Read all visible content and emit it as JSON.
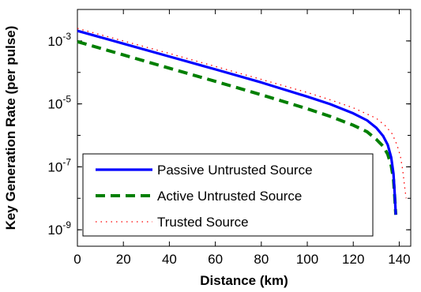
{
  "chart_data": {
    "type": "line",
    "title": "",
    "xlabel": "Distance (km)",
    "ylabel": "Key Generation Rate (per pulse)",
    "xlim": [
      0,
      145
    ],
    "ylim": [
      3e-10,
      0.01
    ],
    "yscale": "log",
    "grid": false,
    "legend_position": "bottom-left",
    "x_ticks": [
      0,
      20,
      40,
      60,
      80,
      100,
      120,
      140
    ],
    "x_tick_labels": [
      "0",
      "20",
      "40",
      "60",
      "80",
      "100",
      "120",
      "140"
    ],
    "y_ticks": [
      1e-09,
      1e-07,
      1e-05,
      0.001
    ],
    "y_tick_labels": [
      {
        "base": "10",
        "exp": "-9"
      },
      {
        "base": "10",
        "exp": "-7"
      },
      {
        "base": "10",
        "exp": "-5"
      },
      {
        "base": "10",
        "exp": "-3"
      }
    ],
    "series": [
      {
        "name": "Passive Untrusted Source",
        "color": "#0000ff",
        "style": "solid",
        "x": [
          0,
          20,
          40,
          60,
          80,
          100,
          110,
          120,
          126,
          130,
          133,
          135,
          136.5,
          137.5,
          138,
          138.5
        ],
        "y": [
          0.0021,
          0.00082,
          0.00032,
          0.000125,
          4.8e-05,
          1.7e-05,
          9.8e-06,
          5e-06,
          3e-06,
          1.75e-06,
          9.5e-07,
          5e-07,
          2e-07,
          6e-08,
          1.5e-08,
          3e-09
        ]
      },
      {
        "name": "Active Untrusted Source",
        "color": "#007f00",
        "style": "dashed",
        "x": [
          0,
          20,
          40,
          60,
          80,
          100,
          110,
          120,
          126,
          130,
          133,
          135,
          136.5,
          137.5,
          138,
          138.5
        ],
        "y": [
          0.00095,
          0.00036,
          0.000136,
          5.2e-05,
          1.95e-05,
          7e-06,
          4e-06,
          2.1e-06,
          1.3e-06,
          7.5e-07,
          4.5e-07,
          2.5e-07,
          1.1e-07,
          4e-08,
          1.2e-08,
          3e-09
        ]
      },
      {
        "name": "Trusted Source",
        "color": "#ff0000",
        "style": "dotted",
        "x": [
          0,
          20,
          40,
          60,
          80,
          100,
          110,
          120,
          130,
          134,
          137,
          139,
          140.5,
          141.5,
          142.3,
          143
        ],
        "y": [
          0.0025,
          0.001,
          0.0004,
          0.000155,
          6e-05,
          2.3e-05,
          1.35e-05,
          7.5e-06,
          3.5e-06,
          2e-06,
          1.1e-06,
          5e-07,
          2.2e-07,
          8e-08,
          2.5e-08,
          1e-08
        ]
      }
    ]
  }
}
